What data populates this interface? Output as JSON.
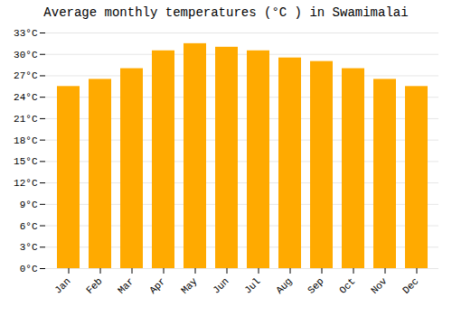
{
  "chart_data": {
    "type": "bar",
    "title": "Average monthly temperatures (°C ) in Swamimalai",
    "categories": [
      "Jan",
      "Feb",
      "Mar",
      "Apr",
      "May",
      "Jun",
      "Jul",
      "Aug",
      "Sep",
      "Oct",
      "Nov",
      "Dec"
    ],
    "values": [
      25.5,
      26.5,
      28.0,
      30.5,
      31.5,
      31.0,
      30.5,
      29.5,
      29.0,
      28.0,
      26.5,
      25.5
    ],
    "color": "#FFAA00",
    "ylim": [
      0,
      33
    ],
    "yticks": [
      {
        "value": 0,
        "label": "0°C"
      },
      {
        "value": 3,
        "label": "3°C"
      },
      {
        "value": 6,
        "label": "6°C"
      },
      {
        "value": 9,
        "label": "9°C"
      },
      {
        "value": 12,
        "label": "12°C"
      },
      {
        "value": 15,
        "label": "15°C"
      },
      {
        "value": 18,
        "label": "18°C"
      },
      {
        "value": 21,
        "label": "21°C"
      },
      {
        "value": 24,
        "label": "24°C"
      },
      {
        "value": 27,
        "label": "27°C"
      },
      {
        "value": 30,
        "label": "30°C"
      },
      {
        "value": 33,
        "label": "33°C"
      }
    ],
    "grid": true
  }
}
